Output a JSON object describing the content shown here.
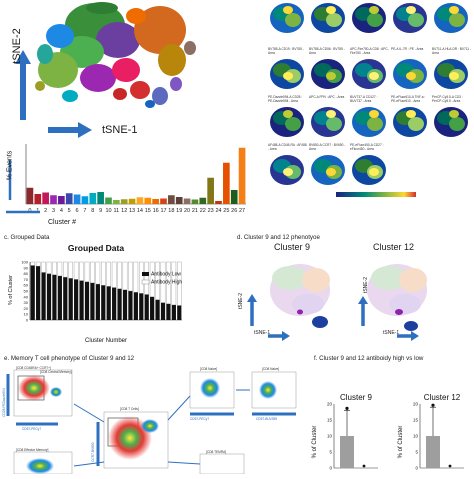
{
  "panel_a": {
    "ylabel": "tSNE-2",
    "xlabel": "tSNE-1"
  },
  "panel_a_hist": {
    "ylabel": "% Events",
    "xlabel": "Cluster #",
    "chart_data": {
      "type": "bar",
      "categories": [
        "0",
        "1",
        "2",
        "3",
        "4",
        "5",
        "6",
        "7",
        "8",
        "9",
        "10",
        "11",
        "12",
        "13",
        "14",
        "15",
        "16",
        "17",
        "18",
        "19",
        "20",
        "21",
        "22",
        "23",
        "24",
        "25",
        "26",
        "27"
      ],
      "values": [
        6.5,
        4.0,
        4.6,
        3.5,
        3.2,
        4.3,
        3.8,
        3.1,
        4.4,
        4.8,
        2.6,
        1.6,
        1.9,
        2.1,
        2.7,
        2.5,
        2.0,
        2.2,
        3.5,
        2.8,
        2.2,
        1.8,
        2.5,
        10.5,
        1.2,
        16.5,
        5.6,
        22.5
      ],
      "colors": [
        "#8a2a2a",
        "#b5202a",
        "#c2185b",
        "#9c27b0",
        "#6a1b9a",
        "#3949ab",
        "#1e88e5",
        "#039be5",
        "#00acc1",
        "#00897b",
        "#43a047",
        "#7cb342",
        "#9e9d24",
        "#c0a000",
        "#f9a825",
        "#ff8f00",
        "#ef6c00",
        "#d84315",
        "#6d4c41",
        "#5d4037",
        "#8d6e63",
        "#558b2f",
        "#33691e",
        "#827717",
        "#bf360c",
        "#e65100",
        "#1b5e20",
        "#f57f17"
      ]
    }
  },
  "panel_b": {
    "markers": [
      [
        "",
        "",
        "",
        "",
        ""
      ],
      [
        "BV785-A CD19 : BV785 - Area",
        "BV785-A CD56 : BV785 - Area",
        "APC-Fire750-A CD8 : APC-Fire750 - Area",
        "PE-A IL-7R : PE - Area",
        "BV711-A HLA-DR : BV711 - Area"
      ],
      [
        "PE-Dazzle594-A CD28 : PE-Dazzle594 - Area",
        "APC-A FPN : APC - Area",
        "BUV737-A CD127 : BUV737 - Area",
        "PE-eFluor610-A TNF-a : PE-eFluor610 - Area",
        "PerCP-Cy5.5-A CD3 : PerCP-Cy5.5 - Area"
      ],
      [
        "AF488-A CD45-RA : AF488 - Area",
        "BV650-A CCR7 : BV650 - Area",
        "PE-eFluor450-A CD27 : eFluor450 - Area",
        "",
        ""
      ]
    ]
  },
  "panel_c": {
    "label": "c. Grouped Data",
    "chart_data": {
      "type": "bar",
      "title": "Grouped Data",
      "ylabel": "% of Cluster",
      "xlabel": "Cluster Number",
      "ylim": [
        0,
        100
      ],
      "yticks": [
        "0",
        "10",
        "20",
        "30",
        "40",
        "50",
        "60",
        "70",
        "80",
        "90",
        "100"
      ],
      "series": [
        {
          "name": "Antibody Low",
          "values": [
            94,
            93,
            82,
            80,
            78,
            76,
            74,
            72,
            70,
            68,
            66,
            64,
            62,
            60,
            58,
            56,
            54,
            52,
            50,
            48,
            46,
            44,
            40,
            35,
            30,
            28,
            26,
            25
          ]
        },
        {
          "name": "Antibody High",
          "values": [
            6,
            7,
            18,
            20,
            22,
            24,
            26,
            28,
            30,
            32,
            34,
            36,
            38,
            40,
            42,
            44,
            46,
            48,
            50,
            52,
            54,
            56,
            60,
            65,
            70,
            72,
            74,
            75
          ]
        }
      ]
    }
  },
  "panel_d": {
    "label": "d. Cluster 9 and 12 phenotyoe",
    "left_title": "Cluster 9",
    "right_title": "Cluster 12",
    "left_ylabel": "tSNE-2",
    "left_xlabel": "tSNE-1",
    "right_ylabel": "tSNE-2",
    "right_xlabel": "tSNE-1"
  },
  "panel_e": {
    "label": "e. Memory T cell phenotype of Cluster 9 and 12",
    "top_gate": "[CD8 CD45RA+ CCR7+]",
    "top_gate2": "[CD8 Central Memory]",
    "center_gate": "[CD8 T Cells]",
    "bottom_gate": "[CD8 Effector Memory]",
    "right_gate1": "[CD8 Naive]",
    "right_gate2": "[CD8 Naive]",
    "right_gate3": "[CD8 TEMRA]",
    "left_xlabel": "CD57-PECy7",
    "left_ylabel": "CD28-PEDazzle594",
    "center_xlabel": "CD57-PECy7",
    "center_ylabel": "CCR7-BV650",
    "right_xlabel": "CD57-BUV395"
  },
  "panel_f": {
    "label": "f. Cluster 9 and 12 antiboidy high vs low",
    "chart_data": [
      {
        "type": "bar",
        "title": "Cluster 9",
        "ylabel": "% of Cluster",
        "yticks": [
          "20",
          "15",
          "10",
          "5",
          "0"
        ],
        "ylim": [
          0,
          20
        ],
        "values": [
          10,
          0
        ],
        "errors": [
          8,
          0
        ]
      },
      {
        "type": "bar",
        "title": "Cluster 12",
        "ylabel": "% of Cluster",
        "yticks": [
          "20",
          "15",
          "10",
          "5",
          "0"
        ],
        "ylim": [
          0,
          20
        ],
        "values": [
          10,
          0
        ],
        "errors": [
          9,
          0
        ]
      }
    ]
  },
  "colors": {
    "arrow_blue": "#2e6fc0",
    "heat_low": "#1a237e",
    "heat_mid": "#2e7d32",
    "heat_high": "#ffeb3b"
  }
}
